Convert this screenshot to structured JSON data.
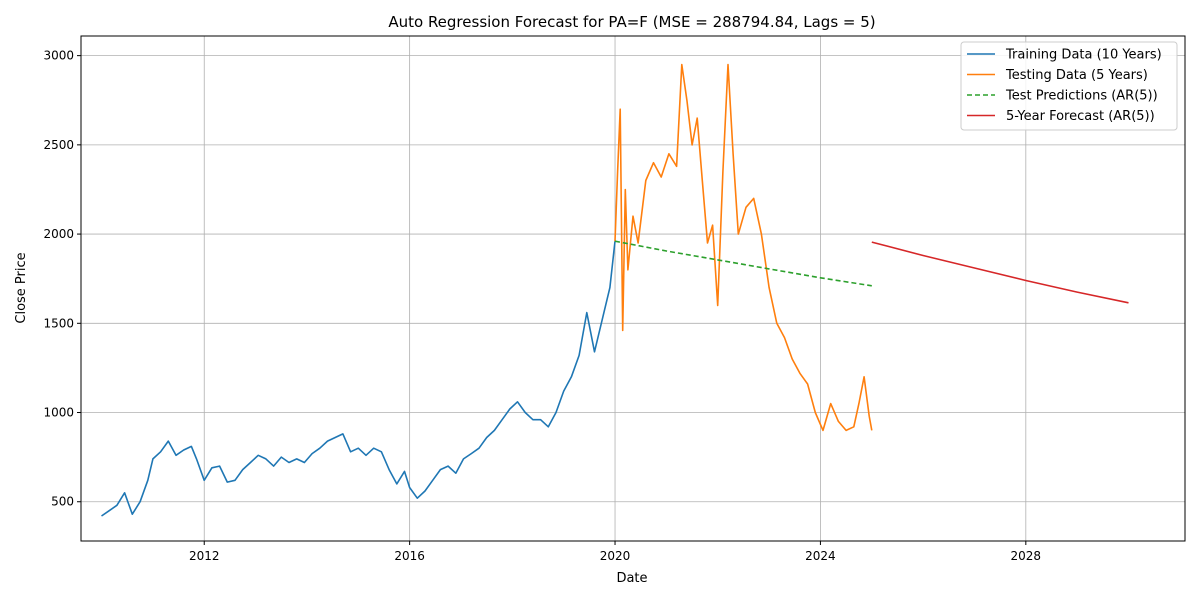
{
  "chart_data": {
    "type": "line",
    "title": "Auto Regression Forecast for PA=F (MSE = 288794.84, Lags = 5)",
    "xlabel": "Date",
    "ylabel": "Close Price",
    "xlim": [
      2009.6,
      2031.1
    ],
    "ylim": [
      280,
      3110
    ],
    "x_ticks": [
      2012,
      2016,
      2020,
      2024,
      2028
    ],
    "y_ticks": [
      500,
      1000,
      1500,
      2000,
      2500,
      3000
    ],
    "grid": true,
    "legend_position": "top-right",
    "series": [
      {
        "name": "Training Data (10 Years)",
        "color": "#1f77b4",
        "style": "solid",
        "x": [
          2010.0,
          2010.15,
          2010.3,
          2010.45,
          2010.6,
          2010.75,
          2010.9,
          2011.0,
          2011.15,
          2011.3,
          2011.45,
          2011.6,
          2011.75,
          2011.85,
          2012.0,
          2012.15,
          2012.3,
          2012.45,
          2012.6,
          2012.75,
          2012.9,
          2013.05,
          2013.2,
          2013.35,
          2013.5,
          2013.65,
          2013.8,
          2013.95,
          2014.1,
          2014.25,
          2014.4,
          2014.55,
          2014.7,
          2014.85,
          2015.0,
          2015.15,
          2015.3,
          2015.45,
          2015.6,
          2015.75,
          2015.9,
          2016.0,
          2016.15,
          2016.3,
          2016.45,
          2016.6,
          2016.75,
          2016.9,
          2017.05,
          2017.2,
          2017.35,
          2017.5,
          2017.65,
          2017.8,
          2017.95,
          2018.1,
          2018.25,
          2018.4,
          2018.55,
          2018.7,
          2018.85,
          2019.0,
          2019.15,
          2019.3,
          2019.45,
          2019.6,
          2019.75,
          2019.9,
          2020.0
        ],
        "values": [
          420,
          450,
          480,
          550,
          430,
          500,
          620,
          740,
          780,
          840,
          760,
          790,
          810,
          740,
          620,
          690,
          700,
          610,
          620,
          680,
          720,
          760,
          740,
          700,
          750,
          720,
          740,
          720,
          770,
          800,
          840,
          860,
          880,
          780,
          800,
          760,
          800,
          780,
          680,
          600,
          670,
          580,
          520,
          560,
          620,
          680,
          700,
          660,
          740,
          770,
          800,
          860,
          900,
          960,
          1020,
          1060,
          1000,
          960,
          960,
          920,
          1000,
          1120,
          1200,
          1320,
          1560,
          1340,
          1520,
          1700,
          1960
        ]
      },
      {
        "name": "Testing Data (5 Years)",
        "color": "#ff7f0e",
        "style": "solid",
        "x": [
          2020.0,
          2020.05,
          2020.1,
          2020.15,
          2020.2,
          2020.25,
          2020.35,
          2020.45,
          2020.6,
          2020.75,
          2020.9,
          2021.05,
          2021.2,
          2021.3,
          2021.4,
          2021.5,
          2021.6,
          2021.7,
          2021.8,
          2021.9,
          2022.0,
          2022.1,
          2022.2,
          2022.3,
          2022.4,
          2022.55,
          2022.7,
          2022.85,
          2023.0,
          2023.15,
          2023.3,
          2023.45,
          2023.6,
          2023.75,
          2023.9,
          2024.05,
          2024.2,
          2024.35,
          2024.5,
          2024.65,
          2024.75,
          2024.85,
          2024.95,
          2025.0
        ],
        "values": [
          1960,
          2350,
          2700,
          1460,
          2250,
          1800,
          2100,
          1950,
          2300,
          2400,
          2320,
          2450,
          2380,
          2950,
          2750,
          2500,
          2650,
          2300,
          1950,
          2050,
          1600,
          2350,
          2950,
          2450,
          2000,
          2150,
          2200,
          2000,
          1700,
          1500,
          1420,
          1300,
          1220,
          1160,
          1000,
          900,
          1050,
          950,
          900,
          920,
          1050,
          1200,
          980,
          900
        ]
      },
      {
        "name": "Test Predictions (AR(5))",
        "color": "#2ca02c",
        "style": "dashed",
        "x": [
          2020.0,
          2021.0,
          2022.0,
          2023.0,
          2024.0,
          2025.0
        ],
        "values": [
          1960,
          1905,
          1855,
          1805,
          1755,
          1710
        ]
      },
      {
        "name": "5-Year Forecast (AR(5))",
        "color": "#d62728",
        "style": "solid",
        "x": [
          2025.0,
          2026.0,
          2027.0,
          2028.0,
          2029.0,
          2030.0
        ],
        "values": [
          1955,
          1880,
          1810,
          1740,
          1675,
          1615
        ]
      }
    ]
  }
}
